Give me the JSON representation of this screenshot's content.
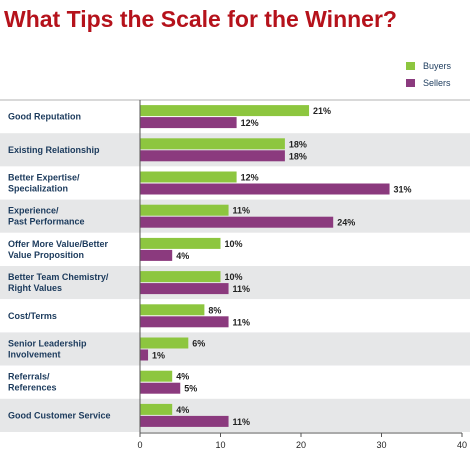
{
  "chart_data": {
    "type": "bar",
    "orientation": "horizontal",
    "title": "What Tips the Scale for the Winner?",
    "categories": [
      [
        "Good Reputation"
      ],
      [
        "Existing Relationship"
      ],
      [
        "Better Expertise/",
        "Specialization"
      ],
      [
        "Experience/",
        "Past Performance"
      ],
      [
        "Offer More Value/Better",
        "Value Proposition"
      ],
      [
        "Better Team Chemistry/",
        "Right Values"
      ],
      [
        "Cost/Terms"
      ],
      [
        "Senior Leadership",
        "Involvement"
      ],
      [
        "Referrals/",
        "References"
      ],
      [
        "Good Customer Service"
      ]
    ],
    "series": [
      {
        "name": "Buyers",
        "color": "#8dc63f",
        "values": [
          21,
          18,
          12,
          11,
          10,
          10,
          8,
          6,
          4,
          4
        ]
      },
      {
        "name": "Sellers",
        "color": "#8b3a7e",
        "values": [
          12,
          18,
          31,
          24,
          4,
          11,
          11,
          1,
          5,
          11
        ]
      }
    ],
    "value_suffix": "%",
    "xlim": [
      0,
      40
    ],
    "xticks": [
      0,
      10,
      20,
      30,
      40
    ],
    "legend_position": "top-right",
    "band_colors": [
      "#ffffff",
      "#e6e7e8"
    ]
  }
}
